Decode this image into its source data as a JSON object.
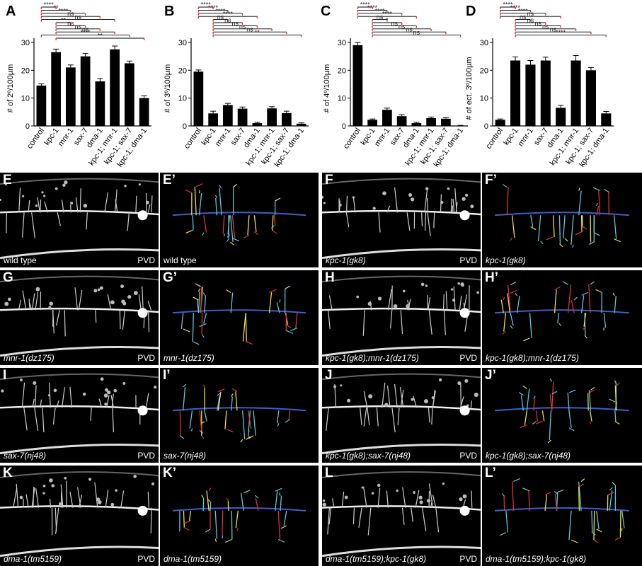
{
  "chart_data": [
    {
      "label": "A",
      "type": "bar",
      "ylabel": "# of 2º/100µm",
      "ylim": [
        0,
        30
      ],
      "yticks": [
        0,
        10,
        20,
        30
      ],
      "categories": [
        "control",
        "kpc-1",
        "mnr-1",
        "sax-7",
        "dma-1",
        "kpc-1; mnr-1",
        "kpc-1; sax-7",
        "kpc-1; dma-1"
      ],
      "values": [
        14.5,
        26.5,
        21,
        25,
        16,
        27.5,
        22.5,
        10
      ],
      "errors": [
        0.6,
        1.1,
        0.9,
        1.0,
        1.0,
        1.2,
        0.8,
        0.8
      ],
      "comparisons": [
        {
          "text": "****",
          "from": 0,
          "to": 1
        },
        {
          "text": "**",
          "from": 0,
          "to": 2
        },
        {
          "text": "****",
          "from": 0,
          "to": 3
        },
        {
          "text": "ns",
          "from": 0,
          "to": 4
        },
        {
          "text": "ns",
          "from": 0,
          "to": 5
        },
        {
          "text": "**",
          "from": 1,
          "to": 2
        },
        {
          "text": "ns",
          "from": 1,
          "to": 3
        },
        {
          "text": "ns",
          "from": 1,
          "to": 4
        },
        {
          "text": "ns",
          "from": 1,
          "to": 5
        },
        {
          "text": "****",
          "from": 0,
          "to": 6
        },
        {
          "text": "**",
          "from": 1,
          "to": 7
        }
      ]
    },
    {
      "label": "B",
      "type": "bar",
      "ylabel": "# of 3º/100µm",
      "ylim": [
        0,
        30
      ],
      "yticks": [
        0,
        10,
        20,
        30
      ],
      "categories": [
        "control",
        "kpc-1",
        "mnr-1",
        "sax-7",
        "dma-1",
        "kpc-1; mnr-1",
        "kpc-1; sax-7",
        "kpc-1; dma-1"
      ],
      "values": [
        19.5,
        4.5,
        7.5,
        6.2,
        1.0,
        6.3,
        4.6,
        0.8
      ],
      "errors": [
        0.6,
        0.8,
        0.6,
        0.6,
        0.3,
        0.6,
        0.7,
        0.3
      ],
      "comparisons": [
        {
          "text": "****",
          "from": 0,
          "to": 1
        },
        {
          "text": "****",
          "from": 0,
          "to": 2
        },
        {
          "text": "****",
          "from": 0,
          "to": 3
        },
        {
          "text": "****",
          "from": 0,
          "to": 4
        },
        {
          "text": "ns",
          "from": 1,
          "to": 2
        },
        {
          "text": "ns",
          "from": 1,
          "to": 3
        },
        {
          "text": "ns",
          "from": 1,
          "to": 4
        },
        {
          "text": "ns",
          "from": 1,
          "to": 5
        },
        {
          "text": "ns",
          "from": 1,
          "to": 6
        },
        {
          "text": "**",
          "from": 1,
          "to": 7
        }
      ]
    },
    {
      "label": "C",
      "type": "bar",
      "ylabel": "# of 4º/100µm",
      "ylim": [
        0,
        30
      ],
      "yticks": [
        0,
        10,
        20,
        30
      ],
      "categories": [
        "control",
        "kpc-1",
        "mnr-1",
        "sax-7",
        "dma-1",
        "kpc-1; mnr-1",
        "kpc-1; sax-7",
        "kpc-1; dma-1"
      ],
      "values": [
        29,
        2.2,
        5.8,
        3.5,
        1.0,
        2.8,
        2.6,
        0.1
      ],
      "errors": [
        1.0,
        0.3,
        0.6,
        0.5,
        0.3,
        0.4,
        0.4,
        0.1
      ],
      "comparisons": [
        {
          "text": "****",
          "from": 0,
          "to": 1
        },
        {
          "text": "****",
          "from": 0,
          "to": 2
        },
        {
          "text": "****",
          "from": 0,
          "to": 3
        },
        {
          "text": "****",
          "from": 0,
          "to": 4
        },
        {
          "text": "ns",
          "from": 1,
          "to": 2
        },
        {
          "text": "*",
          "from": 1,
          "to": 3
        },
        {
          "text": "ns",
          "from": 1,
          "to": 4
        },
        {
          "text": "ns",
          "from": 1,
          "to": 5
        },
        {
          "text": "ns",
          "from": 1,
          "to": 6
        },
        {
          "text": "ns",
          "from": 1,
          "to": 7
        }
      ]
    },
    {
      "label": "D",
      "type": "bar",
      "ylabel": "# of ect. 3º/100µm",
      "ylim": [
        0,
        30
      ],
      "yticks": [
        0,
        10,
        20,
        30
      ],
      "categories": [
        "control",
        "kpc-1",
        "mnr-1",
        "sax-7",
        "dma-1",
        "kpc-1; mnr-1",
        "kpc-1; sax-7",
        "kpc-1; dma-1"
      ],
      "values": [
        2.2,
        23.5,
        22,
        23.5,
        6.5,
        23.5,
        20,
        4.5
      ],
      "errors": [
        0.3,
        1.3,
        1.5,
        1.2,
        0.9,
        1.8,
        1.0,
        0.7
      ],
      "comparisons": [
        {
          "text": "****",
          "from": 0,
          "to": 1
        },
        {
          "text": "****",
          "from": 0,
          "to": 2
        },
        {
          "text": "****",
          "from": 0,
          "to": 3
        },
        {
          "text": "ns",
          "from": 0,
          "to": 4
        },
        {
          "text": "ns",
          "from": 1,
          "to": 2
        },
        {
          "text": "ns",
          "from": 1,
          "to": 3
        },
        {
          "text": "ns",
          "from": 1,
          "to": 4
        },
        {
          "text": "ns",
          "from": 1,
          "to": 5
        },
        {
          "text": "ns",
          "from": 1,
          "to": 6
        },
        {
          "text": "****",
          "from": 1,
          "to": 7
        }
      ]
    }
  ],
  "image_panels": [
    {
      "label": "E",
      "genotype": "wild type",
      "marker": "PVD",
      "traced": false
    },
    {
      "label": "E’",
      "genotype": "wild type",
      "marker": "",
      "traced": true
    },
    {
      "label": "F",
      "genotype": "kpc-1(gk8)",
      "marker": "PVD",
      "traced": false
    },
    {
      "label": "F’",
      "genotype": "kpc-1(gk8)",
      "marker": "",
      "traced": true
    },
    {
      "label": "G",
      "genotype": "mnr-1(dz175)",
      "marker": "PVD",
      "traced": false
    },
    {
      "label": "G’",
      "genotype": "mnr-1(dz175)",
      "marker": "",
      "traced": true
    },
    {
      "label": "H",
      "genotype": "kpc-1(gk8);mnr-1(dz175)",
      "marker": "PVD",
      "traced": false
    },
    {
      "label": "H’",
      "genotype": "kpc-1(gk8);mnr-1(dz175)",
      "marker": "",
      "traced": true
    },
    {
      "label": "I",
      "genotype": "sax-7(nj48)",
      "marker": "PVD",
      "traced": false
    },
    {
      "label": "I’",
      "genotype": "sax-7(nj48)",
      "marker": "",
      "traced": true
    },
    {
      "label": "J",
      "genotype": "kpc-1(gk8);sax-7(nj48)",
      "marker": "PVD",
      "traced": false
    },
    {
      "label": "J’",
      "genotype": "kpc-1(gk8);sax-7(nj48)",
      "marker": "",
      "traced": true
    },
    {
      "label": "K",
      "genotype": "dma-1(tm5159)",
      "marker": "PVD",
      "traced": false
    },
    {
      "label": "K’",
      "genotype": "dma-1(tm5159)",
      "marker": "",
      "traced": true
    },
    {
      "label": "L",
      "genotype": "dma-1(tm5159);kpc-1(gk8)",
      "marker": "PVD",
      "traced": false
    },
    {
      "label": "L’",
      "genotype": "dma-1(tm5159);kpc-1(gk8)",
      "marker": "",
      "traced": true
    }
  ],
  "colors": {
    "bar": "#000000",
    "bracket_end": "#e8321e",
    "trace_primary": "#3a5fcd",
    "trace_secondary": "#5bc8e0",
    "trace_tertiary": "#f0e040",
    "trace_quaternary": "#e23030"
  }
}
